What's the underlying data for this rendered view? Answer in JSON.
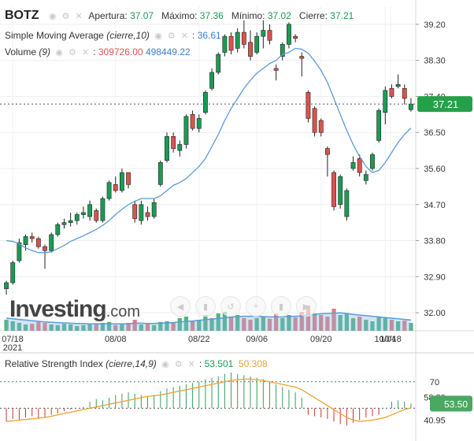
{
  "header": {
    "symbol": "BOTZ",
    "open_label": "Apertura:",
    "open": "37.07",
    "high_label": "Máximo:",
    "high": "37.36",
    "low_label": "Mínimo:",
    "low": "37.02",
    "close_label": "Cierre:",
    "close": "37.21",
    "sma_label": "Simple Moving Average",
    "sma_params": "(cierre,10)",
    "sma_value": "36.61",
    "volume_label": "Volume",
    "volume_params": "(9)",
    "volume_value": "309726.00",
    "volume_avg": "498449.22"
  },
  "rsi": {
    "label": "Relative Strength Index",
    "params": "(cierre,14,9)",
    "value": "53.501",
    "signal": "50.308"
  },
  "logo": {
    "text": "Investing",
    "suffix": ".com"
  },
  "colors": {
    "up": "#1a9b55",
    "down": "#d9534f",
    "sma": "#5b9bd9",
    "rsi_signal": "#f0a030",
    "price_tag": "#24a148",
    "rsi_tag": "#4aa860"
  },
  "chart_data": [
    {
      "type": "candlestick",
      "title": "BOTZ",
      "x_ticks": [
        "07/18",
        "08/08",
        "08/22",
        "09/06",
        "09/20",
        "10/04",
        "10/18"
      ],
      "x_year": "2021",
      "y_ticks": [
        32.0,
        32.9,
        33.8,
        34.7,
        35.6,
        36.5,
        37.4,
        38.3,
        39.2
      ],
      "ylim": [
        31.55,
        39.65
      ],
      "last_price": "37.21",
      "grid": true,
      "candles": [
        {
          "o": 32.6,
          "h": 32.8,
          "l": 32.45,
          "c": 32.75
        },
        {
          "o": 32.75,
          "h": 33.3,
          "l": 32.7,
          "c": 33.25
        },
        {
          "o": 33.3,
          "h": 33.85,
          "l": 33.25,
          "c": 33.75
        },
        {
          "o": 33.7,
          "h": 33.95,
          "l": 33.55,
          "c": 33.9
        },
        {
          "o": 33.9,
          "h": 34.0,
          "l": 33.75,
          "c": 33.85
        },
        {
          "o": 33.85,
          "h": 33.9,
          "l": 33.6,
          "c": 33.65
        },
        {
          "o": 33.65,
          "h": 33.7,
          "l": 33.1,
          "c": 33.55
        },
        {
          "o": 33.55,
          "h": 34.0,
          "l": 33.5,
          "c": 33.95
        },
        {
          "o": 33.95,
          "h": 34.25,
          "l": 33.9,
          "c": 34.2
        },
        {
          "o": 34.2,
          "h": 34.35,
          "l": 34.1,
          "c": 34.25
        },
        {
          "o": 34.25,
          "h": 34.5,
          "l": 34.15,
          "c": 34.3
        },
        {
          "o": 34.3,
          "h": 34.5,
          "l": 34.2,
          "c": 34.45
        },
        {
          "o": 34.45,
          "h": 34.65,
          "l": 34.35,
          "c": 34.5
        },
        {
          "o": 34.4,
          "h": 34.8,
          "l": 34.3,
          "c": 34.7
        },
        {
          "o": 34.55,
          "h": 34.6,
          "l": 34.25,
          "c": 34.3
        },
        {
          "o": 34.3,
          "h": 34.9,
          "l": 34.25,
          "c": 34.85
        },
        {
          "o": 34.85,
          "h": 35.3,
          "l": 34.8,
          "c": 35.25
        },
        {
          "o": 35.2,
          "h": 35.4,
          "l": 35.0,
          "c": 35.05
        },
        {
          "o": 35.05,
          "h": 35.6,
          "l": 35.0,
          "c": 35.5
        },
        {
          "o": 35.5,
          "h": 35.5,
          "l": 35.1,
          "c": 35.2
        },
        {
          "o": 34.7,
          "h": 34.8,
          "l": 34.25,
          "c": 34.35
        },
        {
          "o": 34.3,
          "h": 34.8,
          "l": 34.2,
          "c": 34.7
        },
        {
          "o": 34.5,
          "h": 34.65,
          "l": 34.3,
          "c": 34.4
        },
        {
          "o": 34.4,
          "h": 34.85,
          "l": 34.35,
          "c": 34.75
        },
        {
          "o": 35.2,
          "h": 35.8,
          "l": 35.15,
          "c": 35.75
        },
        {
          "o": 35.8,
          "h": 36.5,
          "l": 35.75,
          "c": 36.4
        },
        {
          "o": 36.4,
          "h": 36.5,
          "l": 36.0,
          "c": 36.1
        },
        {
          "o": 36.05,
          "h": 36.3,
          "l": 35.9,
          "c": 36.2
        },
        {
          "o": 36.2,
          "h": 36.95,
          "l": 36.1,
          "c": 36.9
        },
        {
          "o": 36.95,
          "h": 37.05,
          "l": 36.55,
          "c": 36.6
        },
        {
          "o": 36.6,
          "h": 36.95,
          "l": 36.5,
          "c": 36.85
        },
        {
          "o": 37.0,
          "h": 37.55,
          "l": 36.95,
          "c": 37.5
        },
        {
          "o": 37.6,
          "h": 38.1,
          "l": 37.55,
          "c": 38.0
        },
        {
          "o": 38.0,
          "h": 38.5,
          "l": 37.95,
          "c": 38.45
        },
        {
          "o": 38.5,
          "h": 38.95,
          "l": 38.4,
          "c": 38.9
        },
        {
          "o": 38.9,
          "h": 39.0,
          "l": 38.45,
          "c": 38.55
        },
        {
          "o": 38.6,
          "h": 39.1,
          "l": 38.5,
          "c": 39.0
        },
        {
          "o": 39.0,
          "h": 39.3,
          "l": 38.6,
          "c": 38.7
        },
        {
          "o": 38.75,
          "h": 39.05,
          "l": 38.3,
          "c": 38.4
        },
        {
          "o": 38.5,
          "h": 39.0,
          "l": 38.45,
          "c": 38.9
        },
        {
          "o": 38.9,
          "h": 39.3,
          "l": 38.6,
          "c": 39.05
        },
        {
          "o": 39.05,
          "h": 39.2,
          "l": 38.7,
          "c": 38.8
        },
        {
          "o": 38.1,
          "h": 38.2,
          "l": 37.8,
          "c": 38.05
        },
        {
          "o": 38.4,
          "h": 38.75,
          "l": 38.3,
          "c": 38.7
        },
        {
          "o": 38.7,
          "h": 39.25,
          "l": 38.6,
          "c": 39.2
        },
        {
          "o": 38.9,
          "h": 38.95,
          "l": 38.75,
          "c": 38.85
        },
        {
          "o": 38.4,
          "h": 38.5,
          "l": 37.9,
          "c": 38.35
        },
        {
          "o": 37.5,
          "h": 37.55,
          "l": 36.75,
          "c": 36.85
        },
        {
          "o": 37.1,
          "h": 37.15,
          "l": 36.4,
          "c": 36.5
        },
        {
          "o": 36.8,
          "h": 36.85,
          "l": 36.4,
          "c": 36.5
        },
        {
          "o": 36.1,
          "h": 36.15,
          "l": 35.4,
          "c": 35.95
        },
        {
          "o": 35.5,
          "h": 35.55,
          "l": 34.55,
          "c": 34.65
        },
        {
          "o": 34.7,
          "h": 35.45,
          "l": 34.6,
          "c": 35.4
        },
        {
          "o": 34.4,
          "h": 35.1,
          "l": 34.3,
          "c": 35.05
        },
        {
          "o": 35.6,
          "h": 35.9,
          "l": 35.55,
          "c": 35.75
        },
        {
          "o": 35.85,
          "h": 35.95,
          "l": 35.4,
          "c": 35.5
        },
        {
          "o": 35.3,
          "h": 35.55,
          "l": 35.2,
          "c": 35.45
        },
        {
          "o": 35.6,
          "h": 36.0,
          "l": 35.55,
          "c": 35.95
        },
        {
          "o": 36.3,
          "h": 37.1,
          "l": 36.25,
          "c": 37.05
        },
        {
          "o": 37.0,
          "h": 37.65,
          "l": 36.7,
          "c": 37.55
        },
        {
          "o": 37.6,
          "h": 37.7,
          "l": 37.35,
          "c": 37.4
        },
        {
          "o": 37.65,
          "h": 37.95,
          "l": 37.6,
          "c": 37.7
        },
        {
          "o": 37.6,
          "h": 37.7,
          "l": 37.2,
          "c": 37.35
        },
        {
          "o": 37.07,
          "h": 37.36,
          "l": 37.02,
          "c": 37.21
        }
      ],
      "sma": [
        33.8,
        33.78,
        33.72,
        33.62,
        33.55,
        33.5,
        33.5,
        33.52,
        33.6,
        33.68,
        33.78,
        33.85,
        33.92,
        34.0,
        34.08,
        34.18,
        34.3,
        34.45,
        34.58,
        34.7,
        34.78,
        34.85,
        34.85,
        34.85,
        34.92,
        35.05,
        35.18,
        35.25,
        35.35,
        35.5,
        35.65,
        35.85,
        36.15,
        36.45,
        36.8,
        37.1,
        37.35,
        37.6,
        37.8,
        37.98,
        38.1,
        38.22,
        38.3,
        38.45,
        38.5,
        38.6,
        38.58,
        38.48,
        38.28,
        38.05,
        37.75,
        37.35,
        36.95,
        36.55,
        36.2,
        35.9,
        35.65,
        35.5,
        35.55,
        35.75,
        36.0,
        36.25,
        36.45,
        36.61
      ],
      "volume": [
        0.35,
        0.3,
        0.25,
        0.2,
        0.22,
        0.28,
        0.25,
        0.2,
        0.18,
        0.22,
        0.2,
        0.15,
        0.18,
        0.2,
        0.22,
        0.25,
        0.28,
        0.18,
        0.2,
        0.25,
        0.35,
        0.2,
        0.22,
        0.18,
        0.28,
        0.3,
        0.25,
        0.4,
        0.45,
        0.3,
        0.35,
        0.5,
        0.4,
        0.55,
        0.6,
        0.45,
        0.5,
        0.4,
        0.35,
        0.4,
        0.45,
        0.38,
        0.55,
        0.4,
        0.5,
        0.42,
        0.6,
        0.8,
        0.55,
        0.5,
        0.45,
        0.7,
        0.5,
        0.55,
        0.4,
        0.45,
        0.35,
        0.3,
        0.45,
        0.4,
        0.35,
        0.3,
        0.32,
        0.25
      ],
      "volume_avg": [
        0.4,
        0.38,
        0.36,
        0.34,
        0.32,
        0.3,
        0.28,
        0.27,
        0.26,
        0.25,
        0.24,
        0.23,
        0.23,
        0.22,
        0.22,
        0.22,
        0.22,
        0.22,
        0.22,
        0.22,
        0.24,
        0.24,
        0.23,
        0.23,
        0.24,
        0.25,
        0.26,
        0.28,
        0.3,
        0.31,
        0.33,
        0.35,
        0.37,
        0.39,
        0.41,
        0.43,
        0.45,
        0.46,
        0.46,
        0.46,
        0.45,
        0.44,
        0.44,
        0.44,
        0.45,
        0.46,
        0.47,
        0.5,
        0.52,
        0.54,
        0.55,
        0.56,
        0.57,
        0.55,
        0.52,
        0.5,
        0.48,
        0.46,
        0.44,
        0.42,
        0.4,
        0.38,
        0.36,
        0.34
      ]
    },
    {
      "type": "rsi",
      "title": "Relative Strength Index",
      "y_ticks": [
        70,
        58.3,
        40.95
      ],
      "ylim": [
        30,
        80
      ],
      "last_value": "53.50",
      "bars": [
        40,
        42,
        41,
        43,
        44,
        42,
        43,
        45,
        46,
        48,
        49,
        50,
        51,
        55,
        57,
        56,
        58,
        60,
        61,
        62,
        61,
        60,
        59,
        60,
        63,
        65,
        66,
        67,
        68,
        69,
        70,
        72,
        73,
        74,
        76,
        77,
        76,
        75,
        74,
        73,
        72,
        70,
        68,
        66,
        64,
        62,
        58,
        45,
        44,
        43,
        42,
        40,
        38,
        37,
        39,
        41,
        43,
        44,
        45,
        50,
        55,
        56,
        55,
        53.5
      ],
      "signal": [
        40,
        40.5,
        41,
        41.5,
        42,
        42.5,
        43,
        44,
        45,
        46,
        47,
        48,
        49,
        50,
        51,
        52,
        53,
        54,
        55,
        56,
        57,
        58,
        59,
        59.5,
        60,
        61,
        62,
        63,
        64,
        65,
        66,
        67,
        68,
        69,
        70,
        71,
        71.5,
        72,
        72,
        71.5,
        71,
        70,
        69,
        68,
        67,
        66,
        64,
        61,
        58,
        55,
        52,
        49,
        46,
        43,
        41,
        40,
        40.5,
        41,
        42,
        43,
        45,
        47,
        49,
        50.3
      ],
      "midline": 50,
      "overbought": 70
    }
  ]
}
